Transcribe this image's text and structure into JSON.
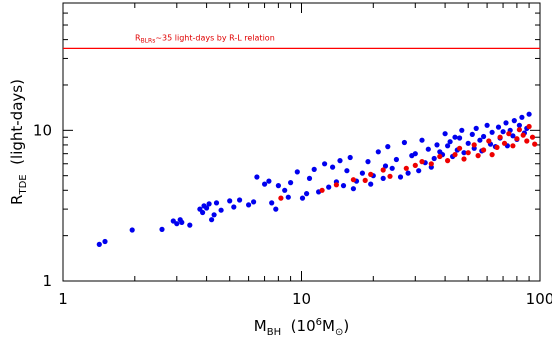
{
  "chart_data": {
    "type": "scatter",
    "x_scale": "log",
    "y_scale": "log",
    "xlim": [
      1,
      100
    ],
    "ylim": [
      1,
      70
    ],
    "grid": false,
    "xlabel": {
      "main": "M",
      "sub": "BH",
      "rest": "  (10",
      "sup": "6",
      "tail": "M",
      "sym": "⊙",
      "close": ")"
    },
    "ylabel": {
      "main": "R",
      "sub": "TDE",
      "rest": "  (light-days)"
    },
    "x_ticks": [
      {
        "value": 1,
        "label": "1"
      },
      {
        "value": 10,
        "label": "10"
      },
      {
        "value": 100,
        "label": "100"
      }
    ],
    "y_ticks": [
      {
        "value": 1,
        "label": "1"
      },
      {
        "value": 10,
        "label": "10"
      }
    ],
    "reference_line": {
      "y": 35,
      "color": "#ff0000",
      "label": {
        "main": "R",
        "sub": "BLRs",
        "rest": "~35 light-days by R-L relation"
      }
    },
    "series": [
      {
        "color": "#0000ee",
        "points": [
          [
            1.42,
            1.75
          ],
          [
            1.5,
            1.83
          ],
          [
            1.95,
            2.18
          ],
          [
            2.6,
            2.2
          ],
          [
            2.9,
            2.5
          ],
          [
            3.0,
            2.4
          ],
          [
            3.1,
            2.55
          ],
          [
            3.15,
            2.45
          ],
          [
            3.4,
            2.35
          ],
          [
            3.75,
            3.0
          ],
          [
            3.85,
            2.85
          ],
          [
            3.9,
            3.15
          ],
          [
            4.0,
            3.05
          ],
          [
            4.1,
            3.25
          ],
          [
            4.2,
            2.55
          ],
          [
            4.3,
            2.75
          ],
          [
            4.4,
            3.3
          ],
          [
            4.6,
            2.95
          ],
          [
            5.0,
            3.4
          ],
          [
            5.2,
            3.1
          ],
          [
            5.5,
            3.45
          ],
          [
            6.0,
            3.2
          ],
          [
            6.3,
            3.35
          ],
          [
            6.5,
            4.9
          ],
          [
            7.0,
            4.4
          ],
          [
            7.3,
            4.6
          ],
          [
            7.5,
            3.3
          ],
          [
            7.8,
            3.0
          ],
          [
            8.0,
            4.3
          ],
          [
            8.5,
            4.0
          ],
          [
            8.8,
            3.6
          ],
          [
            9.0,
            4.5
          ],
          [
            9.6,
            5.3
          ],
          [
            10.1,
            3.55
          ],
          [
            10.5,
            3.8
          ],
          [
            10.8,
            4.8
          ],
          [
            11.3,
            5.5
          ],
          [
            11.8,
            3.9
          ],
          [
            12.5,
            6.0
          ],
          [
            13.0,
            4.2
          ],
          [
            13.5,
            5.7
          ],
          [
            14.0,
            4.55
          ],
          [
            14.5,
            6.3
          ],
          [
            15.0,
            4.3
          ],
          [
            15.5,
            5.4
          ],
          [
            16.0,
            6.6
          ],
          [
            16.5,
            4.1
          ],
          [
            17.0,
            4.6
          ],
          [
            18.0,
            5.2
          ],
          [
            19.0,
            6.2
          ],
          [
            19.5,
            4.4
          ],
          [
            20.0,
            5.0
          ],
          [
            21.0,
            7.2
          ],
          [
            22.0,
            4.8
          ],
          [
            22.5,
            5.8
          ],
          [
            23.0,
            7.8
          ],
          [
            24.0,
            5.6
          ],
          [
            25.0,
            6.4
          ],
          [
            26.0,
            4.9
          ],
          [
            27.0,
            8.3
          ],
          [
            28.0,
            5.2
          ],
          [
            29.0,
            6.8
          ],
          [
            30.0,
            7.0
          ],
          [
            31.0,
            5.4
          ],
          [
            32.0,
            8.6
          ],
          [
            33.0,
            6.1
          ],
          [
            34.0,
            7.5
          ],
          [
            35.0,
            5.7
          ],
          [
            36.0,
            6.5
          ],
          [
            37.0,
            8.0
          ],
          [
            38.0,
            7.2
          ],
          [
            39.0,
            6.9
          ],
          [
            40.0,
            9.5
          ],
          [
            41.0,
            7.9
          ],
          [
            42.0,
            8.4
          ],
          [
            43.0,
            6.7
          ],
          [
            44.0,
            9.0
          ],
          [
            45.0,
            7.4
          ],
          [
            46.0,
            8.9
          ],
          [
            47.0,
            10.0
          ],
          [
            48.0,
            7.1
          ],
          [
            50.0,
            8.2
          ],
          [
            52.0,
            9.4
          ],
          [
            53.0,
            7.6
          ],
          [
            54.0,
            10.3
          ],
          [
            56.0,
            8.6
          ],
          [
            57.0,
            7.3
          ],
          [
            58.0,
            9.1
          ],
          [
            60.0,
            10.8
          ],
          [
            62.0,
            8.1
          ],
          [
            63.0,
            9.7
          ],
          [
            65.0,
            7.8
          ],
          [
            67.0,
            10.5
          ],
          [
            68.0,
            8.9
          ],
          [
            70.0,
            9.8
          ],
          [
            72.0,
            11.2
          ],
          [
            73.0,
            7.9
          ],
          [
            75.0,
            10.0
          ],
          [
            77.0,
            9.2
          ],
          [
            78.0,
            11.6
          ],
          [
            80.0,
            8.7
          ],
          [
            82.0,
            10.8
          ],
          [
            84.0,
            12.2
          ],
          [
            86.0,
            9.6
          ],
          [
            88.0,
            10.3
          ],
          [
            90.0,
            12.8
          ]
        ]
      },
      {
        "color": "#ee0000",
        "points": [
          [
            8.2,
            3.55
          ],
          [
            12.2,
            4.0
          ],
          [
            14.0,
            4.35
          ],
          [
            16.5,
            4.7
          ],
          [
            18.5,
            4.65
          ],
          [
            19.5,
            5.1
          ],
          [
            22.0,
            5.45
          ],
          [
            23.5,
            4.95
          ],
          [
            27.5,
            5.6
          ],
          [
            30.0,
            5.85
          ],
          [
            32.0,
            6.2
          ],
          [
            35.0,
            6.0
          ],
          [
            38.0,
            6.7
          ],
          [
            41.0,
            6.3
          ],
          [
            44.0,
            6.9
          ],
          [
            46.0,
            7.6
          ],
          [
            48.0,
            6.45
          ],
          [
            50.0,
            7.1
          ],
          [
            53.0,
            8.0
          ],
          [
            55.0,
            6.8
          ],
          [
            58.0,
            7.4
          ],
          [
            61.0,
            8.5
          ],
          [
            63.0,
            6.9
          ],
          [
            66.0,
            7.7
          ],
          [
            68.0,
            9.0
          ],
          [
            71.0,
            8.2
          ],
          [
            74.0,
            9.5
          ],
          [
            77.0,
            7.9
          ],
          [
            80.0,
            8.8
          ],
          [
            82.0,
            10.1
          ],
          [
            85.0,
            9.3
          ],
          [
            88.0,
            8.5
          ],
          [
            90.0,
            10.6
          ],
          [
            93.0,
            9.0
          ],
          [
            95.0,
            8.1
          ]
        ]
      }
    ]
  }
}
